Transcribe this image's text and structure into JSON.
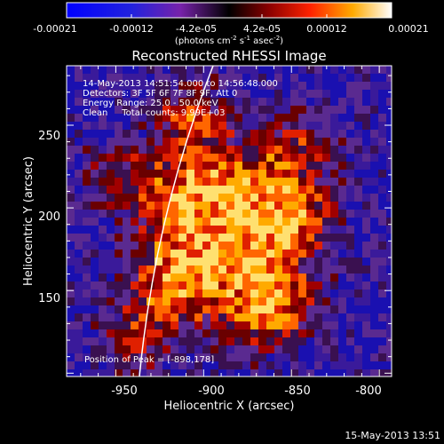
{
  "colorbar": {
    "min": -0.00021,
    "max": 0.00021,
    "tick_labels": [
      "-0.00021",
      "-0.00012",
      "-4.2e-05",
      "4.2e-05",
      "0.00012",
      "0.00021"
    ],
    "units_label": "(photons cm",
    "units_exp1": "-2",
    "units_mid": " s",
    "units_exp2": "-1",
    "units_tail": " asec",
    "units_exp3": "-2",
    "units_close": ")"
  },
  "image": {
    "title": "Reconstructed RHESSI Image",
    "time_range": "14-May-2013 14:51:54.000 to 14:56:48.000",
    "detectors": "Detectors: 3F 5F 6F 7F 8F 9F, Att 0",
    "energy_range": "Energy Range: 25.0 - 50.0 keV",
    "clean_line": "Clean     Total counts: 9.99E+03",
    "peak_position": "Position of Peak = [-898,178]",
    "xlabel": "Heliocentric X (arcsec)",
    "ylabel": "Heliocentric Y (arcsec)",
    "x_ticks": [
      "-950",
      "-900",
      "-850",
      "-800"
    ],
    "y_ticks": [
      "150",
      "200",
      "250"
    ],
    "xlim": [
      -978,
      -793
    ],
    "ylim": [
      98,
      286
    ]
  },
  "footer": {
    "timestamp": "15-May-2013 13:51"
  }
}
